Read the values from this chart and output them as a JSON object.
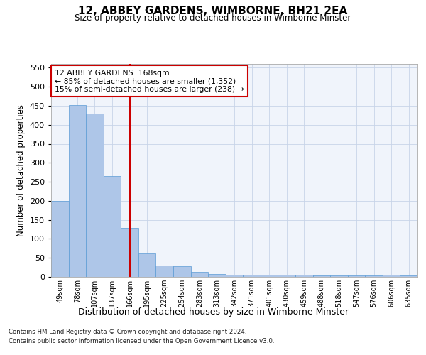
{
  "title": "12, ABBEY GARDENS, WIMBORNE, BH21 2EA",
  "subtitle": "Size of property relative to detached houses in Wimborne Minster",
  "xlabel": "Distribution of detached houses by size in Wimborne Minster",
  "ylabel": "Number of detached properties",
  "footnote1": "Contains HM Land Registry data © Crown copyright and database right 2024.",
  "footnote2": "Contains public sector information licensed under the Open Government Licence v3.0.",
  "categories": [
    "49sqm",
    "78sqm",
    "107sqm",
    "137sqm",
    "166sqm",
    "195sqm",
    "225sqm",
    "254sqm",
    "283sqm",
    "313sqm",
    "342sqm",
    "371sqm",
    "401sqm",
    "430sqm",
    "459sqm",
    "488sqm",
    "518sqm",
    "547sqm",
    "576sqm",
    "606sqm",
    "635sqm"
  ],
  "values": [
    200,
    452,
    430,
    265,
    128,
    62,
    30,
    28,
    13,
    8,
    5,
    5,
    5,
    5,
    5,
    3,
    3,
    3,
    3,
    5,
    3
  ],
  "bar_color": "#aec6e8",
  "bar_edge_color": "#5b9bd5",
  "property_line_x": 4,
  "property_line_color": "#cc0000",
  "annotation_text": "12 ABBEY GARDENS: 168sqm\n← 85% of detached houses are smaller (1,352)\n15% of semi-detached houses are larger (238) →",
  "annotation_box_color": "#ffffff",
  "annotation_box_edge_color": "#cc0000",
  "ylim": [
    0,
    560
  ],
  "yticks": [
    0,
    50,
    100,
    150,
    200,
    250,
    300,
    350,
    400,
    450,
    500,
    550
  ],
  "grid_color": "#c8d4e8",
  "background_color": "#f0f4fb"
}
